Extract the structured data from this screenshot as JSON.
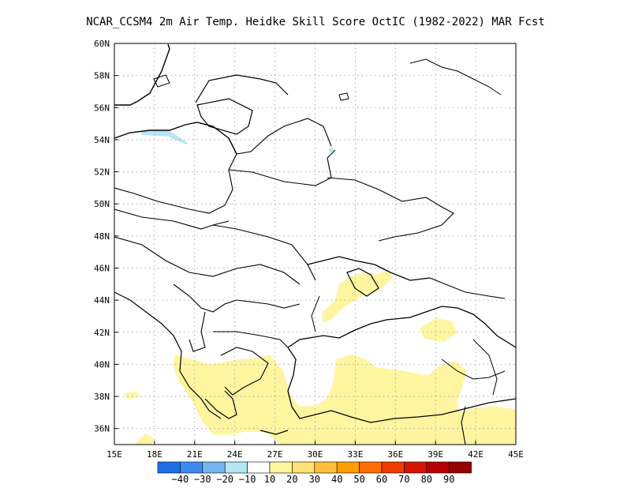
{
  "title": "NCAR_CCSM4  2m Air Temp. Heidke Skill Score OctIC (1982-2022) MAR Fcst",
  "chart_data": {
    "type": "heatmap",
    "title": "NCAR_CCSM4  2m Air Temp. Heidke Skill Score OctIC (1982-2022) MAR Fcst",
    "x_range": [
      15,
      45
    ],
    "y_range": [
      35,
      60
    ],
    "x_ticks": [
      {
        "value": 15,
        "label": "15E"
      },
      {
        "value": 18,
        "label": "18E"
      },
      {
        "value": 21,
        "label": "21E"
      },
      {
        "value": 24,
        "label": "24E"
      },
      {
        "value": 27,
        "label": "27E"
      },
      {
        "value": 30,
        "label": "30E"
      },
      {
        "value": 33,
        "label": "33E"
      },
      {
        "value": 36,
        "label": "36E"
      },
      {
        "value": 39,
        "label": "39E"
      },
      {
        "value": 42,
        "label": "42E"
      },
      {
        "value": 45,
        "label": "45E"
      }
    ],
    "y_ticks": [
      {
        "value": 36,
        "label": "36N"
      },
      {
        "value": 38,
        "label": "38N"
      },
      {
        "value": 40,
        "label": "40N"
      },
      {
        "value": 42,
        "label": "42N"
      },
      {
        "value": 44,
        "label": "44N"
      },
      {
        "value": 46,
        "label": "46N"
      },
      {
        "value": 48,
        "label": "48N"
      },
      {
        "value": 50,
        "label": "50N"
      },
      {
        "value": 52,
        "label": "52N"
      },
      {
        "value": 54,
        "label": "54N"
      },
      {
        "value": 56,
        "label": "56N"
      },
      {
        "value": 58,
        "label": "58N"
      },
      {
        "value": 60,
        "label": "60N"
      }
    ],
    "grid": true,
    "colorbar": {
      "labels": [
        "-40",
        "-30",
        "-20",
        "-10",
        "10",
        "20",
        "30",
        "40",
        "50",
        "60",
        "70",
        "80",
        "90"
      ],
      "colors": [
        "#1e6fe6",
        "#3c8cf0",
        "#78b4f0",
        "#b4e6f5",
        "#ffffff",
        "#fff5a0",
        "#ffe178",
        "#ffbe3c",
        "#ffa000",
        "#ff6e00",
        "#f03c00",
        "#d21400",
        "#b40000",
        "#960000"
      ]
    },
    "regions": [
      {
        "name": "poland-baltic",
        "value": -10,
        "points": [
          [
            16.2,
            54.6
          ],
          [
            17.5,
            55.3
          ],
          [
            19.5,
            55.0
          ],
          [
            21.0,
            54.8
          ],
          [
            22.5,
            54.6
          ],
          [
            23.5,
            54.2
          ],
          [
            24.2,
            53.4
          ],
          [
            24.0,
            52.7
          ],
          [
            23.0,
            52.2
          ],
          [
            22.0,
            51.8
          ],
          [
            20.5,
            51.8
          ],
          [
            19.5,
            51.3
          ],
          [
            18.8,
            51.5
          ],
          [
            18.0,
            51.8
          ],
          [
            17.2,
            52.5
          ],
          [
            16.5,
            53.3
          ],
          [
            16.1,
            54.0
          ]
        ]
      },
      {
        "name": "belarus-russia",
        "value": -10,
        "points": [
          [
            24.5,
            53.6
          ],
          [
            25.5,
            53.8
          ],
          [
            26.5,
            55.0
          ],
          [
            27.5,
            55.5
          ],
          [
            28.2,
            57.0
          ],
          [
            28.5,
            58.5
          ],
          [
            29.5,
            58.9
          ],
          [
            31.0,
            58.8
          ],
          [
            32.5,
            59.0
          ],
          [
            33.5,
            59.4
          ],
          [
            34.5,
            59.0
          ],
          [
            34.6,
            58.0
          ],
          [
            34.2,
            57.0
          ],
          [
            35.0,
            56.5
          ],
          [
            36.0,
            55.8
          ],
          [
            36.2,
            55.0
          ],
          [
            37.0,
            54.2
          ],
          [
            37.5,
            53.5
          ],
          [
            36.8,
            52.8
          ],
          [
            35.5,
            52.2
          ],
          [
            34.6,
            51.3
          ],
          [
            34.5,
            50.2
          ],
          [
            34.6,
            49.0
          ],
          [
            34.6,
            48.0
          ],
          [
            34.4,
            47.2
          ],
          [
            33.6,
            46.8
          ],
          [
            33.0,
            46.5
          ],
          [
            32.5,
            46.0
          ],
          [
            32.0,
            45.8
          ],
          [
            32.4,
            46.6
          ],
          [
            32.8,
            47.4
          ],
          [
            32.6,
            48.5
          ],
          [
            32.4,
            49.5
          ],
          [
            31.8,
            50.6
          ],
          [
            31.0,
            51.6
          ],
          [
            29.5,
            51.9
          ],
          [
            28.0,
            52.0
          ],
          [
            27.5,
            52.8
          ],
          [
            26.5,
            53.2
          ],
          [
            25.5,
            53.1
          ],
          [
            24.8,
            53.2
          ]
        ]
      },
      {
        "name": "latvia-north",
        "value": -10,
        "points": [
          [
            28.0,
            58.2
          ],
          [
            29.5,
            58.8
          ],
          [
            30.5,
            59.5
          ],
          [
            31.5,
            59.8
          ],
          [
            32.4,
            60.0
          ],
          [
            32.8,
            59.6
          ],
          [
            31.5,
            59.0
          ],
          [
            29.5,
            58.2
          ],
          [
            28.5,
            57.9
          ]
        ]
      },
      {
        "name": "poland-inner",
        "value": -20,
        "points": [
          [
            17.0,
            54.5
          ],
          [
            19.0,
            54.6
          ],
          [
            20.5,
            53.8
          ],
          [
            20.4,
            53.7
          ],
          [
            19.0,
            54.2
          ],
          [
            17.0,
            54.3
          ]
        ]
      },
      {
        "name": "belarus-dot",
        "value": -20,
        "points": [
          [
            31.0,
            53.4
          ],
          [
            31.3,
            53.5
          ],
          [
            31.4,
            53.3
          ],
          [
            31.1,
            53.2
          ]
        ]
      },
      {
        "name": "black-sea-north",
        "value": 10,
        "points": [
          [
            30.5,
            43.2
          ],
          [
            31.5,
            44.0
          ],
          [
            31.8,
            45.0
          ],
          [
            32.5,
            45.4
          ],
          [
            33.5,
            45.7
          ],
          [
            34.5,
            45.6
          ],
          [
            35.5,
            45.9
          ],
          [
            35.8,
            45.4
          ],
          [
            34.8,
            44.6
          ],
          [
            33.4,
            44.2
          ],
          [
            32.2,
            43.6
          ],
          [
            31.2,
            42.8
          ],
          [
            30.6,
            42.6
          ]
        ]
      },
      {
        "name": "black-sea-east",
        "value": 10,
        "points": [
          [
            37.8,
            42.2
          ],
          [
            39.0,
            42.9
          ],
          [
            40.2,
            42.7
          ],
          [
            40.6,
            42.0
          ],
          [
            39.6,
            41.4
          ],
          [
            38.2,
            41.6
          ]
        ]
      },
      {
        "name": "greece",
        "value": 10,
        "points": [
          [
            19.5,
            40.6
          ],
          [
            20.4,
            40.4
          ],
          [
            22.2,
            40.0
          ],
          [
            24.3,
            40.3
          ],
          [
            25.8,
            40.4
          ],
          [
            26.6,
            40.6
          ],
          [
            27.6,
            39.6
          ],
          [
            28.2,
            38.0
          ],
          [
            28.8,
            37.4
          ],
          [
            30.0,
            37.4
          ],
          [
            30.8,
            37.8
          ],
          [
            31.3,
            38.7
          ],
          [
            31.6,
            40.3
          ],
          [
            32.6,
            40.6
          ],
          [
            33.6,
            40.4
          ],
          [
            34.6,
            39.8
          ],
          [
            36.5,
            39.6
          ],
          [
            38.4,
            39.3
          ],
          [
            39.3,
            39.9
          ],
          [
            40.5,
            40.2
          ],
          [
            41.3,
            39.6
          ],
          [
            41.0,
            38.6
          ],
          [
            40.6,
            37.6
          ],
          [
            40.8,
            37.0
          ],
          [
            42.0,
            37.3
          ],
          [
            43.2,
            37.4
          ],
          [
            44.2,
            37.3
          ],
          [
            45.0,
            37.2
          ],
          [
            45.0,
            35.0
          ],
          [
            27.4,
            35.0
          ],
          [
            26.6,
            35.6
          ],
          [
            26.0,
            35.8
          ],
          [
            24.8,
            35.8
          ],
          [
            23.4,
            35.6
          ],
          [
            22.4,
            35.6
          ],
          [
            21.5,
            36.5
          ],
          [
            20.9,
            37.6
          ],
          [
            19.8,
            39.0
          ],
          [
            19.4,
            39.9
          ]
        ]
      },
      {
        "name": "italy-tip",
        "value": 10,
        "points": [
          [
            15.7,
            38.2
          ],
          [
            16.6,
            38.3
          ],
          [
            16.9,
            38.0
          ],
          [
            16.0,
            37.8
          ]
        ]
      },
      {
        "name": "med-west",
        "value": 10,
        "points": [
          [
            16.5,
            35.0
          ],
          [
            17.3,
            35.7
          ],
          [
            18.0,
            35.3
          ],
          [
            17.8,
            35.0
          ]
        ]
      }
    ],
    "land_outline_note": "coastlines and borders"
  }
}
